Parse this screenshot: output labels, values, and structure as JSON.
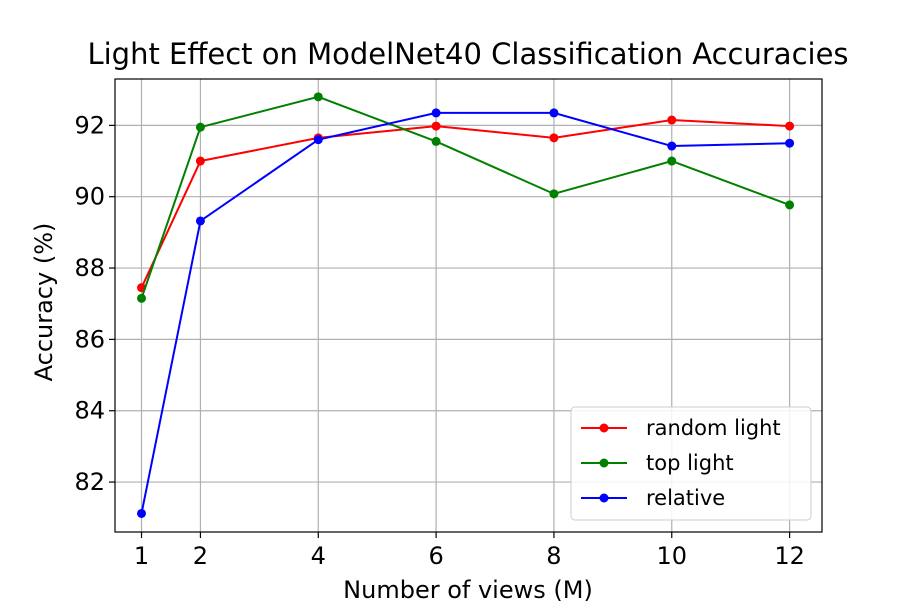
{
  "chart_data": {
    "type": "line",
    "title": "Light Effect on ModelNet40 Classification Accuracies",
    "xlabel": "Number of views (M)",
    "ylabel": "Accuracy (%)",
    "x": [
      1,
      2,
      4,
      6,
      8,
      10,
      12
    ],
    "xticks": [
      1,
      2,
      4,
      6,
      8,
      10,
      12
    ],
    "yticks": [
      82,
      84,
      86,
      88,
      90,
      92
    ],
    "xlim": [
      0.55,
      12.55
    ],
    "ylim": [
      80.6,
      93.3
    ],
    "grid": true,
    "legend_position": "lower-right",
    "series": [
      {
        "name": "random light",
        "color": "#ff0000",
        "values": [
          87.45,
          91.0,
          91.65,
          91.98,
          91.65,
          92.15,
          91.98
        ]
      },
      {
        "name": "top light",
        "color": "#008000",
        "values": [
          87.15,
          91.95,
          92.8,
          91.55,
          90.08,
          91.0,
          89.77
        ]
      },
      {
        "name": "relative",
        "color": "#0000ff",
        "values": [
          81.12,
          89.32,
          91.6,
          92.35,
          92.35,
          91.42,
          91.5
        ]
      }
    ]
  }
}
